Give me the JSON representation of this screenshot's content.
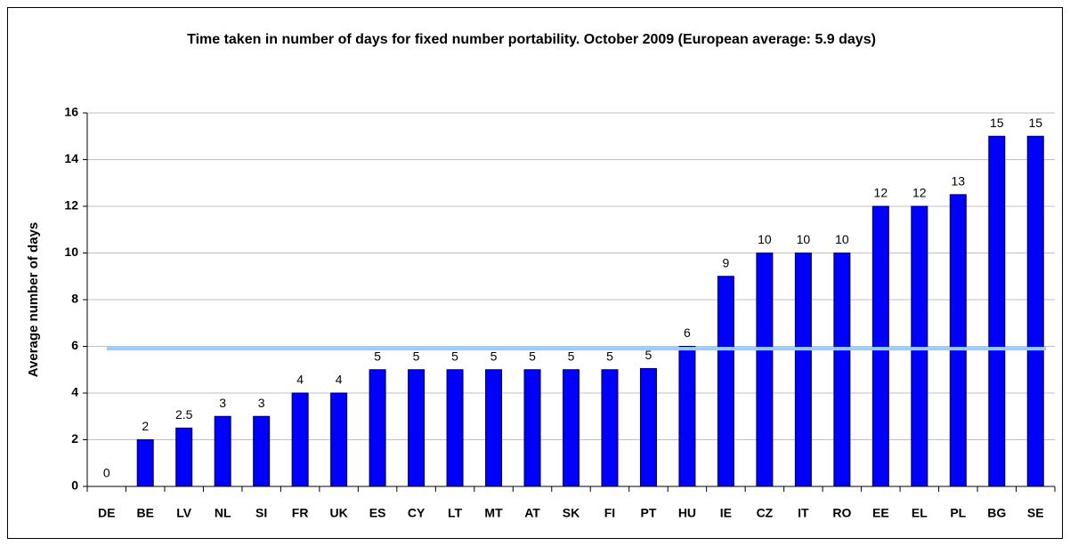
{
  "chart_data": {
    "type": "bar",
    "title": "Time taken in number of days for fixed number portability. October 2009 (European average: 5.9 days)",
    "y_label": "Average number of days",
    "categories": [
      "DE",
      "BE",
      "LV",
      "NL",
      "SI",
      "FR",
      "UK",
      "ES",
      "CY",
      "LT",
      "MT",
      "AT",
      "SK",
      "FI",
      "PT",
      "HU",
      "IE",
      "CZ",
      "IT",
      "RO",
      "EE",
      "EL",
      "PL",
      "BG",
      "SE"
    ],
    "values": [
      0,
      2,
      2.5,
      3,
      3,
      4,
      4,
      5,
      5,
      5,
      5,
      5,
      5,
      5,
      5.05,
      6,
      9,
      10,
      10,
      10,
      12,
      12,
      12.5,
      15,
      15
    ],
    "value_labels": [
      "0",
      "2",
      "2.5",
      "3",
      "3",
      "4",
      "4",
      "5",
      "5",
      "5",
      "5",
      "5",
      "5",
      "5",
      "5",
      "6",
      "9",
      "10",
      "10",
      "10",
      "12",
      "12",
      "13",
      "15",
      "15"
    ],
    "color": "#0000ff",
    "reference_line": {
      "value": 5.9,
      "color": "#99ccff"
    },
    "ylim": [
      0,
      16
    ],
    "yticks": [
      0,
      2,
      4,
      6,
      8,
      10,
      12,
      14,
      16
    ],
    "grid": true
  }
}
